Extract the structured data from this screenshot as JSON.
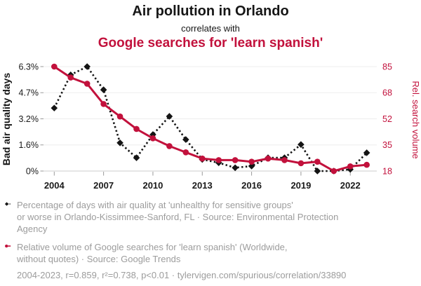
{
  "header": {
    "title": "Air pollution in Orlando",
    "subtitle": "correlates with",
    "title2": "Google searches for 'learn spanish'"
  },
  "colors": {
    "ink": "#161616",
    "accent": "#c2113c",
    "muted": "#9c9c9c",
    "grid": "#ededed",
    "axis_line": "#cbcbcb",
    "tick_mark": "#9a9a9a",
    "tick_text": "#1a1a1a"
  },
  "chart_data": {
    "type": "line",
    "title": "Air pollution in Orlando correlates with Google searches for 'learn spanish'",
    "x": [
      2004,
      2005,
      2006,
      2007,
      2008,
      2009,
      2010,
      2011,
      2012,
      2013,
      2014,
      2015,
      2016,
      2017,
      2018,
      2019,
      2020,
      2021,
      2022,
      2023
    ],
    "x_ticks": [
      2004,
      2007,
      2010,
      2013,
      2016,
      2019,
      2022
    ],
    "series": [
      {
        "name": "Percentage of days with air quality at 'unhealthy for sensitive groups' or worse in Orlando-Kissimmee-Sanford, FL",
        "axis": "left",
        "color": "#141414",
        "line_style": "dashed",
        "marker": "diamond",
        "values": [
          3.8,
          5.8,
          6.3,
          4.9,
          1.7,
          0.8,
          2.2,
          3.3,
          1.9,
          0.7,
          0.5,
          0.2,
          0.3,
          0.8,
          0.8,
          1.6,
          0.0,
          0.0,
          0.1,
          1.1
        ]
      },
      {
        "name": "Relative volume of Google searches for 'learn spanish' (Worldwide, without quotes)",
        "axis": "right",
        "color": "#c2113c",
        "line_style": "solid",
        "marker": "circle",
        "values": [
          85,
          78,
          74,
          61,
          53,
          45,
          39,
          34,
          30,
          26,
          25,
          25,
          24,
          26,
          25,
          23,
          24,
          18,
          21,
          22
        ]
      }
    ],
    "left_axis": {
      "label": "Bad air quality days",
      "min": 0,
      "max": 6.3,
      "tick_labels": [
        "0%",
        "1.6%",
        "3.2%",
        "4.7%",
        "6.3%"
      ]
    },
    "right_axis": {
      "label": "Rel. search volume",
      "min": 18,
      "max": 85,
      "tick_labels": [
        "18",
        "35",
        "52",
        "68",
        "85"
      ]
    },
    "grid": true,
    "legend_position": "bottom"
  },
  "legend": {
    "entries": [
      {
        "icon": "diamond-dashed-line",
        "lines": [
          "Percentage of days with air quality at 'unhealthy for sensitive groups'",
          "or worse in Orlando-Kissimmee-Sanford, FL · Source: Environmental Protection",
          "Agency"
        ]
      },
      {
        "icon": "circle-solid-line",
        "lines": [
          "Relative volume of Google searches for 'learn spanish' (Worldwide,",
          "without quotes) · Source: Google Trends"
        ]
      }
    ]
  },
  "footer": {
    "stats": "2004-2023, r=0.859, r²=0.738, p<0.01 · tylervigen.com/spurious/correlation/33890"
  }
}
